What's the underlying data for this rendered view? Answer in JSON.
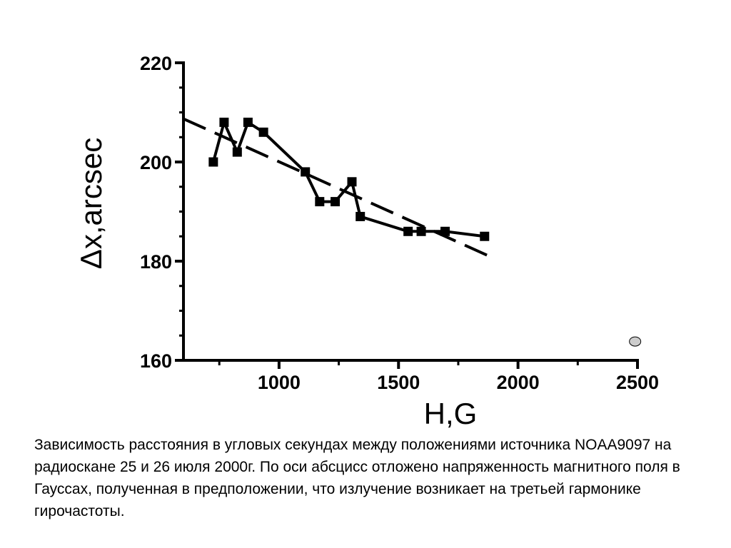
{
  "chart_data": {
    "type": "scatter",
    "xlabel": "H,G",
    "ylabel": "Δx,arcsec",
    "xlim": [
      600,
      2500
    ],
    "ylim": [
      160,
      220
    ],
    "x_ticks": [
      1000,
      1500,
      2000,
      2500
    ],
    "y_ticks": [
      160,
      180,
      200,
      220
    ],
    "x_tick_labels": [
      "1000",
      "1500",
      "2000",
      "2500"
    ],
    "y_tick_labels": [
      "160",
      "180",
      "200",
      "220"
    ],
    "grid": false,
    "legend": "none",
    "series": [
      {
        "marker": "square",
        "style": "solid",
        "x": [
          725,
          770,
          825,
          870,
          935,
          1110,
          1170,
          1235,
          1305,
          1340,
          1540,
          1595,
          1695,
          1860
        ],
        "y": [
          200,
          208,
          202,
          208,
          206,
          198,
          192,
          192,
          196,
          189,
          186,
          186,
          186,
          185
        ]
      },
      {
        "marker": "none",
        "style": "dashed",
        "x": [
          600,
          1880
        ],
        "y": [
          208.7,
          181
        ]
      },
      {
        "marker": "circle",
        "style": "none",
        "color": "#cccccc",
        "x": [
          2490
        ],
        "y": [
          163.8
        ]
      }
    ]
  },
  "caption": "Зависимость расстояния в угловых секундах между положениями источника NOAA9097 на радиоскане 25 и 26 июля 2000г. По оси абсцисс отложено напряженность магнитного поля в Гауссах, полученная в предположении, что излучение возникает на третьей гармонике гирочастоты."
}
